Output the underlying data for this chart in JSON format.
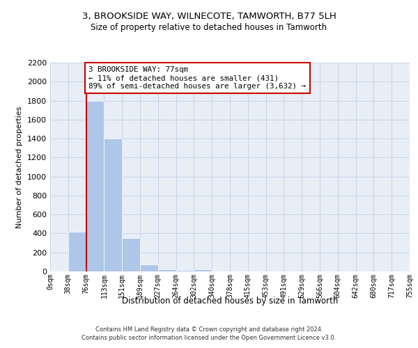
{
  "title_line1": "3, BROOKSIDE WAY, WILNECOTE, TAMWORTH, B77 5LH",
  "title_line2": "Size of property relative to detached houses in Tamworth",
  "xlabel": "Distribution of detached houses by size in Tamworth",
  "ylabel": "Number of detached properties",
  "footnote": "Contains HM Land Registry data © Crown copyright and database right 2024.\nContains public sector information licensed under the Open Government Licence v3.0.",
  "bin_labels": [
    "0sqm",
    "38sqm",
    "76sqm",
    "113sqm",
    "151sqm",
    "189sqm",
    "227sqm",
    "264sqm",
    "302sqm",
    "340sqm",
    "378sqm",
    "415sqm",
    "453sqm",
    "491sqm",
    "529sqm",
    "566sqm",
    "604sqm",
    "642sqm",
    "680sqm",
    "717sqm",
    "755sqm"
  ],
  "bar_values": [
    10,
    420,
    1800,
    1400,
    350,
    70,
    25,
    15,
    25,
    0,
    0,
    0,
    0,
    0,
    0,
    0,
    0,
    0,
    0,
    0
  ],
  "bar_color": "#aec6e8",
  "grid_color": "#c8d4e8",
  "background_color": "#e8eef6",
  "marker_color": "#cc0000",
  "annotation_text": "3 BROOKSIDE WAY: 77sqm\n← 11% of detached houses are smaller (431)\n89% of semi-detached houses are larger (3,632) →",
  "annotation_box_color": "#cc0000",
  "ylim": [
    0,
    2200
  ],
  "yticks": [
    0,
    200,
    400,
    600,
    800,
    1000,
    1200,
    1400,
    1600,
    1800,
    2000,
    2200
  ]
}
